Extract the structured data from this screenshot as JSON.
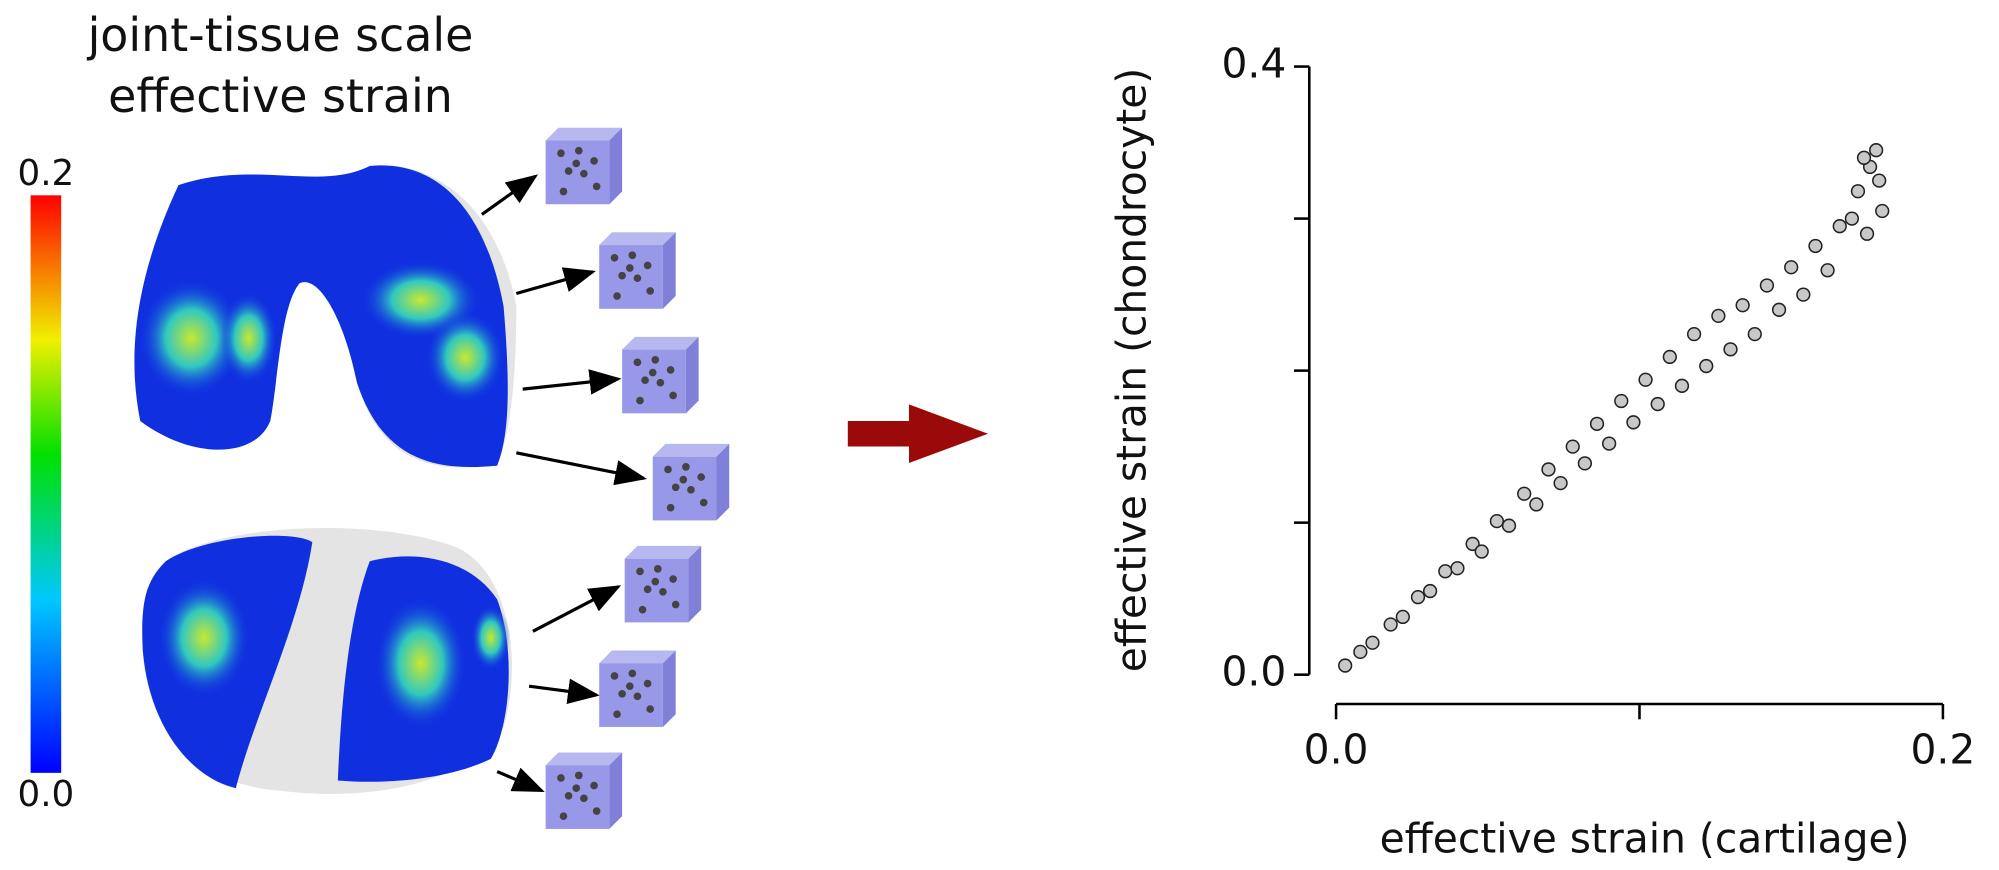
{
  "illustration": {
    "title_lines": [
      "joint-tissue scale",
      "effective strain"
    ],
    "colorbar": {
      "max_label": "0.2",
      "min_label": "0.0"
    }
  },
  "chart_data": {
    "type": "scatter",
    "xlabel": "effective strain (cartilage)",
    "ylabel": "effective strain (chondrocyte)",
    "xlim": [
      0,
      0.2
    ],
    "ylim": [
      0,
      0.4
    ],
    "xticks": [
      {
        "value": 0,
        "label": "0.0"
      },
      0.2
    ],
    "xticks_minor": [
      0.1
    ],
    "yticks": [
      {
        "value": 0,
        "label": "0.0"
      },
      0.4
    ],
    "yticks_minor": [
      0.1,
      0.2,
      0.3
    ],
    "color": "#c8c8c8",
    "x": [
      0.003,
      0.008,
      0.012,
      0.018,
      0.022,
      0.027,
      0.031,
      0.036,
      0.04,
      0.045,
      0.048,
      0.053,
      0.057,
      0.062,
      0.066,
      0.07,
      0.074,
      0.078,
      0.082,
      0.086,
      0.09,
      0.094,
      0.098,
      0.102,
      0.106,
      0.11,
      0.114,
      0.118,
      0.122,
      0.126,
      0.13,
      0.134,
      0.138,
      0.142,
      0.146,
      0.15,
      0.154,
      0.158,
      0.162,
      0.166,
      0.17,
      0.172,
      0.175,
      0.176,
      0.178,
      0.18,
      0.179,
      0.174
    ],
    "y": [
      0.006,
      0.015,
      0.021,
      0.033,
      0.038,
      0.051,
      0.055,
      0.068,
      0.07,
      0.086,
      0.081,
      0.101,
      0.098,
      0.119,
      0.112,
      0.135,
      0.126,
      0.15,
      0.139,
      0.165,
      0.152,
      0.18,
      0.166,
      0.194,
      0.178,
      0.209,
      0.19,
      0.224,
      0.203,
      0.236,
      0.214,
      0.243,
      0.224,
      0.256,
      0.24,
      0.268,
      0.25,
      0.282,
      0.266,
      0.295,
      0.3,
      0.318,
      0.29,
      0.334,
      0.345,
      0.305,
      0.325,
      0.34
    ]
  }
}
